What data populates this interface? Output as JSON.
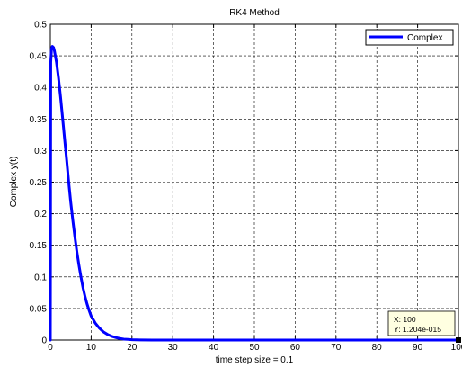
{
  "chart_data": {
    "type": "line",
    "title": "RK4 Method",
    "xlabel": "time step size = 0.1",
    "ylabel": "Complex y(t)",
    "xlim": [
      0,
      100
    ],
    "ylim": [
      0,
      0.5
    ],
    "x_ticks": [
      "0",
      "10",
      "20",
      "30",
      "40",
      "50",
      "60",
      "70",
      "80",
      "90",
      "100"
    ],
    "y_ticks": [
      "0",
      "0.05",
      "0.1",
      "0.15",
      "0.2",
      "0.25",
      "0.3",
      "0.35",
      "0.4",
      "0.45",
      "0.5"
    ],
    "grid": true,
    "grid_style": "dashed",
    "legend_position": "top-right",
    "series": [
      {
        "name": "Complex",
        "color": "#0000ff",
        "x": [
          0,
          0.1,
          0.3,
          0.5,
          0.8,
          1,
          1.5,
          2,
          2.5,
          3,
          3.5,
          4,
          4.5,
          5,
          5.5,
          6,
          6.5,
          7,
          7.5,
          8,
          8.5,
          9,
          9.5,
          10,
          11,
          12,
          13,
          14,
          15,
          16,
          17,
          18,
          19,
          20,
          22,
          25,
          30,
          40,
          50,
          60,
          70,
          80,
          90,
          100
        ],
        "y": [
          0,
          0.44,
          0.462,
          0.465,
          0.463,
          0.458,
          0.44,
          0.415,
          0.385,
          0.352,
          0.318,
          0.285,
          0.25,
          0.218,
          0.19,
          0.164,
          0.14,
          0.119,
          0.1,
          0.083,
          0.069,
          0.057,
          0.047,
          0.038,
          0.027,
          0.019,
          0.013,
          0.009,
          0.006,
          0.004,
          0.0025,
          0.0015,
          0.001,
          0.0006,
          0.0002,
          0,
          0,
          0,
          0,
          0,
          0,
          0,
          0,
          0
        ]
      }
    ],
    "datatip": {
      "x_text": "X: 100",
      "y_text": "Y: 1.204e-015",
      "x": 100,
      "y": 0
    }
  }
}
